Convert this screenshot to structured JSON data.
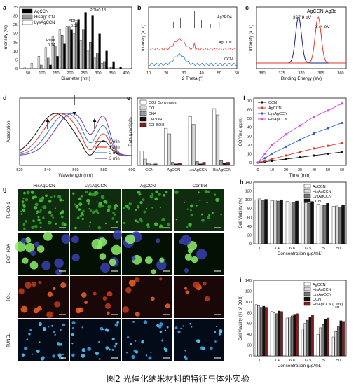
{
  "caption": "图2 光催化纳米材料的特征与体外实验",
  "panel_labels": [
    "a",
    "b",
    "c",
    "d",
    "e",
    "f",
    "g",
    "h",
    "i"
  ],
  "chart_data": [
    {
      "id": "a",
      "type": "bar",
      "xlabel": "Diameter (nm)",
      "ylabel": "Intensity (%)",
      "x_ticks": [
        "50",
        "100",
        "150",
        "200",
        "250",
        "300",
        "350",
        "400"
      ],
      "y_ticks": [
        "0",
        "5",
        "10",
        "15",
        "20",
        "25",
        "30",
        "35"
      ],
      "ylim": [
        0,
        35
      ],
      "legend": [
        "AgCCN",
        "HisAgCCN",
        "LysAgCCN"
      ],
      "legend_colors": [
        "#000000",
        "#9a9a9a",
        "#ffffff"
      ],
      "annotations": [
        "PDI=0.13",
        "PDI=\n0.18",
        "PDI=\n0.24"
      ],
      "categories": [
        50,
        75,
        100,
        125,
        150,
        175,
        200,
        225,
        250,
        275,
        300,
        325,
        350,
        375,
        400
      ],
      "series": [
        {
          "name": "LysAgCCN",
          "values": [
            1,
            3,
            7,
            12,
            18,
            22,
            24,
            20,
            16,
            10,
            6,
            3,
            1,
            0,
            0
          ]
        },
        {
          "name": "HisAgCCN",
          "values": [
            0,
            0,
            2,
            6,
            13,
            19,
            24,
            26,
            22,
            15,
            9,
            4,
            1,
            0,
            0
          ]
        },
        {
          "name": "AgCCN",
          "values": [
            0,
            0,
            0,
            2,
            7,
            14,
            22,
            28,
            32,
            30,
            20,
            10,
            4,
            1,
            0
          ]
        }
      ]
    },
    {
      "id": "b",
      "type": "line",
      "xlabel": "2 Theta (°)",
      "ylabel": "Intensity (a.u.)",
      "x_ticks": [
        "10",
        "20",
        "30",
        "40",
        "50",
        "60"
      ],
      "xlim": [
        10,
        60
      ],
      "series_labels": [
        "Ag3PO4",
        "AgCCN",
        "CCN"
      ],
      "series_colors": [
        "#222222",
        "#e0392b",
        "#2f7fcf"
      ]
    },
    {
      "id": "c",
      "type": "line",
      "title": "AgCCN-Ag3d",
      "xlabel": "Binding Energy (eV)",
      "ylabel": "Intensity (a.u.)",
      "x_ticks": [
        "380",
        "375",
        "370",
        "365",
        "360"
      ],
      "xlim": [
        380,
        360
      ],
      "annotations": [
        "367.9 eV",
        "374 eV"
      ],
      "series_colors": [
        "#1a237e",
        "#e0392b"
      ]
    },
    {
      "id": "d",
      "type": "line",
      "xlabel": "Wavelength (nm)",
      "ylabel": "Absorption",
      "x_ticks": [
        "520",
        "540",
        "560",
        "580",
        "600"
      ],
      "xlim": [
        520,
        600
      ],
      "series": [
        {
          "name": "0 min",
          "color": "#111111"
        },
        {
          "name": "1 min",
          "color": "#e0392b"
        },
        {
          "name": "2 min",
          "color": "#2f7fcf"
        },
        {
          "name": "3 min",
          "color": "#7a3f9d"
        }
      ]
    },
    {
      "id": "e",
      "type": "bar",
      "ylabel": "Rate (μmol/g/h)",
      "categories": [
        "CCN",
        "AgCCN",
        "LysAgCCN",
        "HisAgCCN"
      ],
      "legend": [
        "CO2 Conversion",
        "CO",
        "CH4",
        "CH3OH",
        "C2H5OH"
      ],
      "legend_colors": [
        "#ffffff",
        "#d8d8d8",
        "#9a9a9a",
        "#111111",
        "#8a1a1a"
      ],
      "series": [
        {
          "name": "CO2 Conversion",
          "values": [
            18,
            47,
            62,
            72
          ]
        },
        {
          "name": "CO",
          "values": [
            8,
            40,
            52,
            64
          ]
        },
        {
          "name": "CH4",
          "values": [
            3,
            4,
            5,
            6
          ]
        },
        {
          "name": "CH3OH",
          "values": [
            1,
            2,
            2,
            3
          ]
        },
        {
          "name": "C2H5OH",
          "values": [
            2,
            3,
            4,
            4
          ]
        }
      ]
    },
    {
      "id": "f",
      "type": "line",
      "xlabel": "Time (min)",
      "ylabel": "CO Yield (ppm)",
      "x_ticks": [
        "0",
        "10",
        "20",
        "30",
        "40",
        "50",
        "60"
      ],
      "y_ticks": [
        "0",
        "10",
        "20",
        "30",
        "40",
        "50",
        "60",
        "70"
      ],
      "x": [
        0,
        5,
        10,
        20,
        30,
        40,
        50,
        60
      ],
      "ylim": [
        0,
        70
      ],
      "series": [
        {
          "name": "CCN",
          "color": "#111111",
          "values": [
            0,
            1,
            2,
            4,
            6,
            8,
            10,
            12
          ]
        },
        {
          "name": "AgCCN",
          "color": "#e0392b",
          "values": [
            0,
            2,
            4,
            8,
            12,
            16,
            19,
            22
          ]
        },
        {
          "name": "LysAgCCN",
          "color": "#2f5fcf",
          "values": [
            0,
            5,
            10,
            18,
            26,
            33,
            39,
            45
          ]
        },
        {
          "name": "HisAgCCN",
          "color": "#d04ad8",
          "values": [
            0,
            10,
            20,
            32,
            42,
            52,
            59,
            67
          ]
        }
      ]
    },
    {
      "id": "g",
      "type": "table",
      "columns": [
        "HisAgCCN",
        "LysAgCCN",
        "AgCCN",
        "Control"
      ],
      "rows": [
        "FL-CO-1",
        "DCFH-DA",
        "JC-1",
        "TUNEL"
      ]
    },
    {
      "id": "h",
      "type": "bar",
      "xlabel": "Concentration (μg/mL)",
      "ylabel": "Cell Viability (%)",
      "categories": [
        "1.7",
        "3.4",
        "6.8",
        "12.5",
        "25",
        "50"
      ],
      "ylim": [
        0,
        140
      ],
      "y_ticks": [
        "0",
        "20",
        "40",
        "60",
        "80",
        "100",
        "120",
        "140"
      ],
      "legend": [
        "AgCCN",
        "HisAgCCN",
        "LysAgCCN",
        "CCN"
      ],
      "legend_colors": [
        "#ffffff",
        "#d8d8d8",
        "#777777",
        "#111111"
      ],
      "series": [
        {
          "name": "AgCCN",
          "values": [
            100,
            98,
            96,
            95,
            90,
            85
          ]
        },
        {
          "name": "HisAgCCN",
          "values": [
            102,
            99,
            95,
            93,
            88,
            86
          ]
        },
        {
          "name": "LysAgCCN",
          "values": [
            98,
            97,
            94,
            92,
            87,
            84
          ]
        },
        {
          "name": "CCN",
          "values": [
            101,
            100,
            97,
            96,
            92,
            88
          ]
        }
      ]
    },
    {
      "id": "i",
      "type": "bar",
      "xlabel": "Concentration (μg/mL)",
      "ylabel": "Cell Viability (% of DOX)",
      "categories": [
        "1.7",
        "3.4",
        "6.8",
        "12.5",
        "25",
        "50"
      ],
      "ylim": [
        0,
        140
      ],
      "y_ticks": [
        "0",
        "20",
        "40",
        "60",
        "80",
        "100",
        "120",
        "140"
      ],
      "legend": [
        "AgCCN",
        "HisAgCCN",
        "LysAgCCN",
        "CCN",
        "HisAgCCN (Dark)"
      ],
      "legend_colors": [
        "#ffffff",
        "#d8d8d8",
        "#777777",
        "#111111",
        "#8a1a1a"
      ],
      "annotations": [
        "***"
      ],
      "series": [
        {
          "name": "AgCCN",
          "values": [
            95,
            82,
            70,
            50,
            40,
            35
          ]
        },
        {
          "name": "HisAgCCN",
          "values": [
            93,
            80,
            72,
            60,
            52,
            45
          ]
        },
        {
          "name": "LysAgCCN",
          "values": [
            90,
            78,
            74,
            66,
            58,
            55
          ]
        },
        {
          "name": "CCN",
          "values": [
            92,
            83,
            77,
            72,
            68,
            65
          ]
        },
        {
          "name": "HisAgCCN (Dark)",
          "values": [
            90,
            82,
            78,
            75,
            70,
            64
          ]
        }
      ]
    }
  ]
}
